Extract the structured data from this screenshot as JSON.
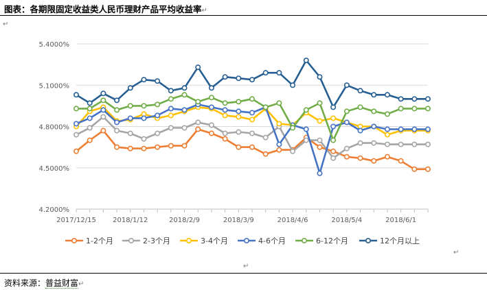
{
  "header": {
    "title": "图表：各期限固定收益类人民币理财产品平均收益率",
    "title_mark": "↵"
  },
  "marks": {
    "paragraph": "↵"
  },
  "footer": {
    "label": "资料来源：",
    "source": "普益财富",
    "mark": "↵"
  },
  "colors": {
    "s1": "#ED7D31",
    "s2": "#A5A5A5",
    "s3": "#FFC000",
    "s4": "#4472C4",
    "s5": "#70AD47",
    "s6": "#255E91",
    "grid": "#D9D9D9",
    "axis": "#BFBFBF",
    "tick_text": "#595959"
  },
  "chart_data": {
    "type": "line",
    "ylim": [
      4.2,
      5.4
    ],
    "ytick_values": [
      4.2,
      4.5,
      4.8,
      5.1,
      5.4
    ],
    "ytick_labels": [
      "4.2000%",
      "4.5000%",
      "4.8000%",
      "5.1000%",
      "5.4000%"
    ],
    "xtick_labels": [
      "2017/12/15",
      "2018/1/12",
      "2018/2/9",
      "2018/3/9",
      "2018/4/6",
      "2018/5/4",
      "2018/6/1"
    ],
    "x": [
      "2017/12/15",
      "2017/12/22",
      "2017/12/29",
      "2018/1/5",
      "2018/1/12",
      "2018/1/19",
      "2018/1/26",
      "2018/2/2",
      "2018/2/9",
      "2018/2/16",
      "2018/2/23",
      "2018/3/2",
      "2018/3/9",
      "2018/3/16",
      "2018/3/23",
      "2018/3/30",
      "2018/4/6",
      "2018/4/13",
      "2018/4/20",
      "2018/4/27",
      "2018/5/4",
      "2018/5/11",
      "2018/5/18",
      "2018/5/25",
      "2018/6/1",
      "2018/6/8",
      "2018/6/15"
    ],
    "legend_position": "bottom",
    "grid": true,
    "series": [
      {
        "name": "1-2个月",
        "color_key": "s1",
        "values": [
          4.62,
          4.7,
          4.77,
          4.65,
          4.64,
          4.64,
          4.65,
          4.66,
          4.66,
          4.78,
          4.75,
          4.71,
          4.65,
          4.65,
          4.6,
          4.63,
          4.63,
          4.72,
          4.65,
          4.62,
          4.58,
          4.57,
          4.55,
          4.58,
          4.55,
          4.49,
          4.49
        ]
      },
      {
        "name": "2-3个月",
        "color_key": "s2",
        "values": [
          4.74,
          4.79,
          4.87,
          4.77,
          4.75,
          4.71,
          4.75,
          4.79,
          4.79,
          4.83,
          4.81,
          4.75,
          4.76,
          4.75,
          4.72,
          4.8,
          4.62,
          4.7,
          4.7,
          4.57,
          4.64,
          4.68,
          4.68,
          4.67,
          4.67,
          4.67,
          4.67
        ]
      },
      {
        "name": "3-4个月",
        "color_key": "s3",
        "values": [
          4.8,
          4.91,
          4.94,
          4.84,
          4.85,
          4.89,
          4.86,
          4.88,
          4.91,
          4.94,
          4.93,
          4.88,
          4.87,
          4.85,
          4.93,
          4.82,
          4.81,
          4.9,
          4.84,
          4.86,
          4.83,
          4.8,
          4.8,
          4.74,
          4.77,
          4.77,
          4.77
        ]
      },
      {
        "name": "4-6个月",
        "color_key": "s4",
        "values": [
          4.82,
          4.86,
          4.92,
          4.83,
          4.86,
          4.86,
          4.88,
          4.93,
          4.92,
          4.96,
          4.94,
          4.92,
          4.91,
          4.9,
          4.94,
          4.67,
          4.81,
          4.78,
          4.46,
          4.8,
          4.83,
          4.77,
          4.8,
          4.78,
          4.78,
          4.78,
          4.78
        ]
      },
      {
        "name": "6-12个月",
        "color_key": "s5",
        "values": [
          4.93,
          4.93,
          4.99,
          4.92,
          4.95,
          4.95,
          4.96,
          5.0,
          5.03,
          4.98,
          5.01,
          4.97,
          4.98,
          5.0,
          4.94,
          4.97,
          4.79,
          4.92,
          4.97,
          4.7,
          4.91,
          4.94,
          4.91,
          4.89,
          4.93,
          4.93,
          4.93
        ]
      },
      {
        "name": "12个月以上",
        "color_key": "s6",
        "values": [
          5.03,
          4.97,
          5.04,
          4.99,
          5.08,
          5.14,
          5.13,
          5.06,
          5.08,
          5.23,
          5.08,
          5.16,
          5.15,
          5.14,
          5.19,
          5.19,
          5.1,
          5.28,
          5.16,
          4.94,
          5.1,
          5.06,
          5.03,
          5.03,
          5.0,
          5.0,
          5.0
        ]
      }
    ]
  }
}
